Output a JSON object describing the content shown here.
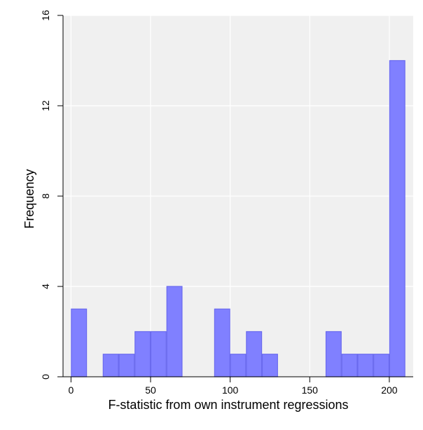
{
  "chart_data": {
    "type": "bar",
    "title": "",
    "xlabel": "F-statistic from own instrument regressions",
    "ylabel": "Frequency",
    "bin_width": 10,
    "xlim": [
      -5,
      215
    ],
    "ylim": [
      0,
      16
    ],
    "x_ticks": [
      0,
      50,
      100,
      150,
      200
    ],
    "y_ticks": [
      0,
      4,
      8,
      12,
      16
    ],
    "grid": true,
    "bins": [
      {
        "start": 0,
        "count": 3
      },
      {
        "start": 20,
        "count": 1
      },
      {
        "start": 30,
        "count": 1
      },
      {
        "start": 40,
        "count": 2
      },
      {
        "start": 50,
        "count": 2
      },
      {
        "start": 60,
        "count": 4
      },
      {
        "start": 90,
        "count": 3
      },
      {
        "start": 100,
        "count": 1
      },
      {
        "start": 110,
        "count": 2
      },
      {
        "start": 120,
        "count": 1
      },
      {
        "start": 160,
        "count": 2
      },
      {
        "start": 170,
        "count": 1
      },
      {
        "start": 180,
        "count": 1
      },
      {
        "start": 190,
        "count": 1
      },
      {
        "start": 200,
        "count": 14
      }
    ],
    "colors": {
      "bar_fill": "#8080ff",
      "bar_stroke": "#6a6aee",
      "plot_background": "#f0f0f0",
      "grid": "#ffffff"
    }
  }
}
